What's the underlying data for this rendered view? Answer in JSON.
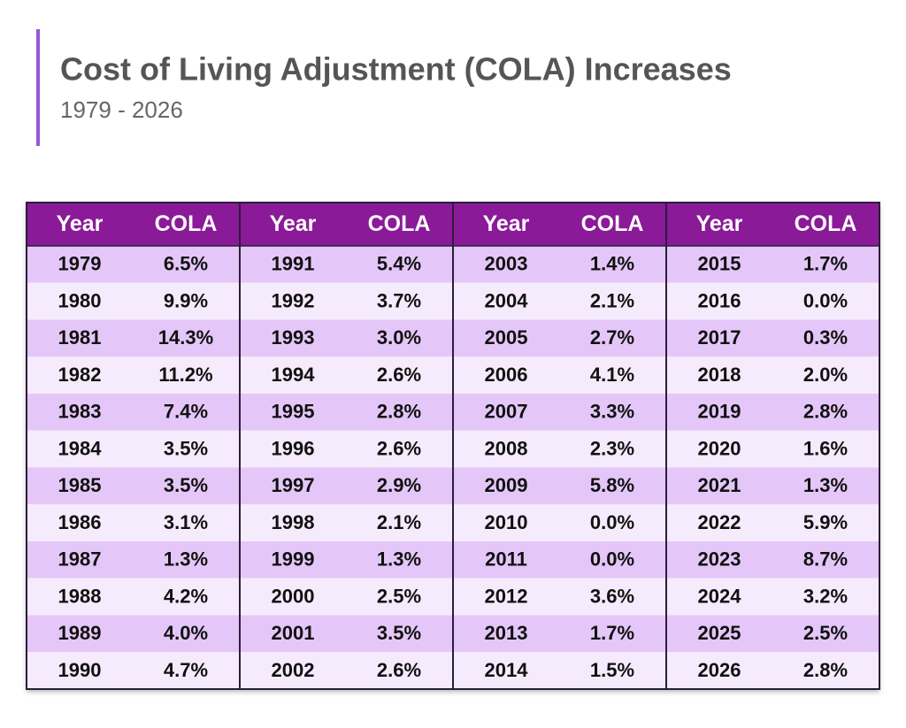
{
  "header": {
    "title": "Cost of Living Adjustment (COLA) Increases",
    "subtitle": "1979 - 2026"
  },
  "table": {
    "groups": [
      {
        "headers": [
          "Year",
          "COLA"
        ],
        "rows": [
          [
            "1979",
            "6.5%"
          ],
          [
            "1980",
            "9.9%"
          ],
          [
            "1981",
            "14.3%"
          ],
          [
            "1982",
            "11.2%"
          ],
          [
            "1983",
            "7.4%"
          ],
          [
            "1984",
            "3.5%"
          ],
          [
            "1985",
            "3.5%"
          ],
          [
            "1986",
            "3.1%"
          ],
          [
            "1987",
            "1.3%"
          ],
          [
            "1988",
            "4.2%"
          ],
          [
            "1989",
            "4.0%"
          ],
          [
            "1990",
            "4.7%"
          ]
        ]
      },
      {
        "headers": [
          "Year",
          "COLA"
        ],
        "rows": [
          [
            "1991",
            "5.4%"
          ],
          [
            "1992",
            "3.7%"
          ],
          [
            "1993",
            "3.0%"
          ],
          [
            "1994",
            "2.6%"
          ],
          [
            "1995",
            "2.8%"
          ],
          [
            "1996",
            "2.6%"
          ],
          [
            "1997",
            "2.9%"
          ],
          [
            "1998",
            "2.1%"
          ],
          [
            "1999",
            "1.3%"
          ],
          [
            "2000",
            "2.5%"
          ],
          [
            "2001",
            "3.5%"
          ],
          [
            "2002",
            "2.6%"
          ]
        ]
      },
      {
        "headers": [
          "Year",
          "COLA"
        ],
        "rows": [
          [
            "2003",
            "1.4%"
          ],
          [
            "2004",
            "2.1%"
          ],
          [
            "2005",
            "2.7%"
          ],
          [
            "2006",
            "4.1%"
          ],
          [
            "2007",
            "3.3%"
          ],
          [
            "2008",
            "2.3%"
          ],
          [
            "2009",
            "5.8%"
          ],
          [
            "2010",
            "0.0%"
          ],
          [
            "2011",
            "0.0%"
          ],
          [
            "2012",
            "3.6%"
          ],
          [
            "2013",
            "1.7%"
          ],
          [
            "2014",
            "1.5%"
          ]
        ]
      },
      {
        "headers": [
          "Year",
          "COLA"
        ],
        "rows": [
          [
            "2015",
            "1.7%"
          ],
          [
            "2016",
            "0.0%"
          ],
          [
            "2017",
            "0.3%"
          ],
          [
            "2018",
            "2.0%"
          ],
          [
            "2019",
            "2.8%"
          ],
          [
            "2020",
            "1.6%"
          ],
          [
            "2021",
            "1.3%"
          ],
          [
            "2022",
            "5.9%"
          ],
          [
            "2023",
            "8.7%"
          ],
          [
            "2024",
            "3.2%"
          ],
          [
            "2025",
            "2.5%"
          ],
          [
            "2026",
            "2.8%"
          ]
        ]
      }
    ]
  }
}
